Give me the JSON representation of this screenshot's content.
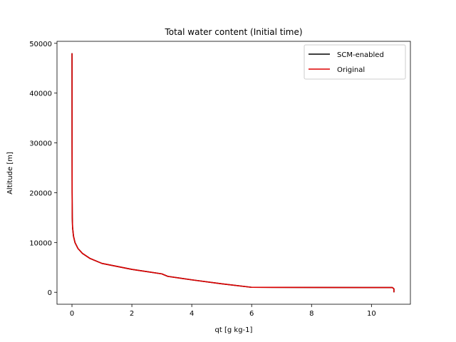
{
  "chart_data": {
    "type": "line",
    "title": "Total water content (Initial time)",
    "xlabel": "qt [g kg-1]",
    "ylabel": "Altitude [m]",
    "xlim": [
      -0.5,
      11.3
    ],
    "ylim": [
      -2400,
      50400
    ],
    "xticks": [
      0,
      2,
      4,
      6,
      8,
      10
    ],
    "yticks": [
      0,
      10000,
      20000,
      30000,
      40000,
      50000
    ],
    "legend_position": "top-right",
    "grid": false,
    "series": [
      {
        "name": "SCM-enabled",
        "color": "#000000",
        "x": [
          10.75,
          10.75,
          10.7,
          8.0,
          6.0,
          5.0,
          4.0,
          3.2,
          3.0,
          2.0,
          1.0,
          0.6,
          0.35,
          0.2,
          0.1,
          0.05,
          0.02,
          0.01,
          0.005,
          0.003,
          0.002
        ],
        "y": [
          0,
          700,
          950,
          970,
          1000,
          1700,
          2500,
          3200,
          3700,
          4600,
          5800,
          6800,
          7800,
          8800,
          10000,
          11300,
          13000,
          15000,
          20000,
          30000,
          48000
        ]
      },
      {
        "name": "Original",
        "color": "#dd0000",
        "x": [
          10.75,
          10.75,
          10.7,
          8.0,
          6.0,
          5.0,
          4.0,
          3.2,
          3.0,
          2.0,
          1.0,
          0.6,
          0.35,
          0.2,
          0.1,
          0.05,
          0.02,
          0.01,
          0.005,
          0.003,
          0.002
        ],
        "y": [
          0,
          700,
          950,
          970,
          1000,
          1700,
          2500,
          3200,
          3700,
          4600,
          5800,
          6800,
          7800,
          8800,
          10000,
          11300,
          13000,
          15000,
          20000,
          30000,
          48000
        ]
      }
    ]
  }
}
